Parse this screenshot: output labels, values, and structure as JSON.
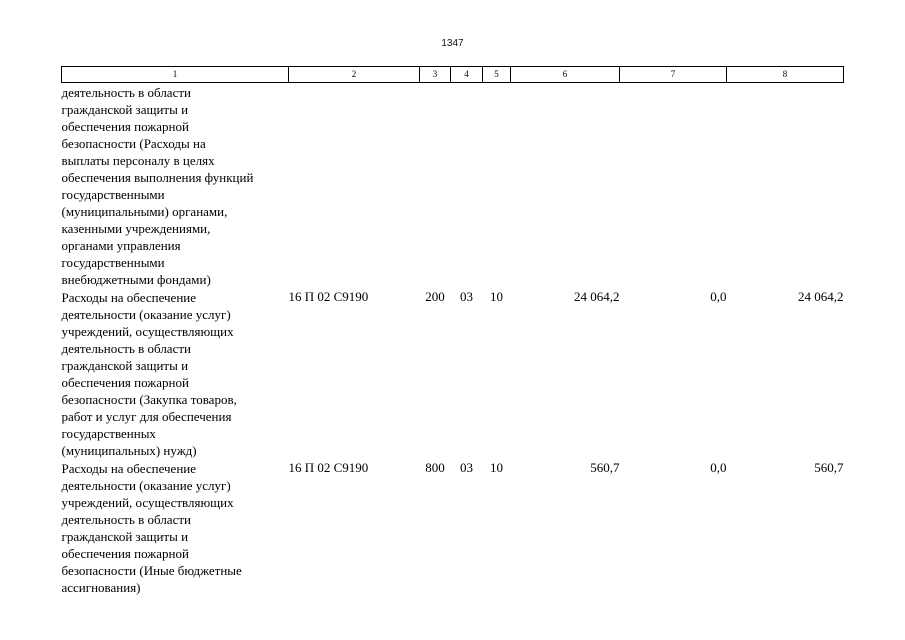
{
  "page_number": "1347",
  "columns": [
    "1",
    "2",
    "3",
    "4",
    "5",
    "6",
    "7",
    "8"
  ],
  "rows": [
    {
      "description": "деятельность в области\nгражданской защиты и\nобеспечения пожарной\nбезопасности (Расходы на\nвыплаты персоналу в целях\nобеспечения выполнения функций\nгосударственными\n(муниципальными) органами,\nказенными учреждениями,\nорганами управления\nгосударственными\nвнебюджетными фондами)",
      "code": "",
      "c3": "",
      "c4": "",
      "c5": "",
      "c6": "",
      "c7": "",
      "c8": ""
    },
    {
      "description": "Расходы на обеспечение\nдеятельности (оказание услуг)\nучреждений, осуществляющих\nдеятельность в области\nгражданской защиты и\nобеспечения пожарной\nбезопасности (Закупка товаров,\nработ и услуг для обеспечения\nгосударственных\n(муниципальных) нужд)",
      "code": "16 П 02 С9190",
      "c3": "200",
      "c4": "03",
      "c5": "10",
      "c6": "24 064,2",
      "c7": "0,0",
      "c8": "24 064,2"
    },
    {
      "description": "Расходы на обеспечение\nдеятельности (оказание услуг)\nучреждений, осуществляющих\nдеятельность в области\nгражданской защиты и\nобеспечения пожарной\nбезопасности (Иные бюджетные\nассигнования)",
      "code": "16 П 02 С9190",
      "c3": "800",
      "c4": "03",
      "c5": "10",
      "c6": "560,7",
      "c7": "0,0",
      "c8": "560,7"
    }
  ]
}
